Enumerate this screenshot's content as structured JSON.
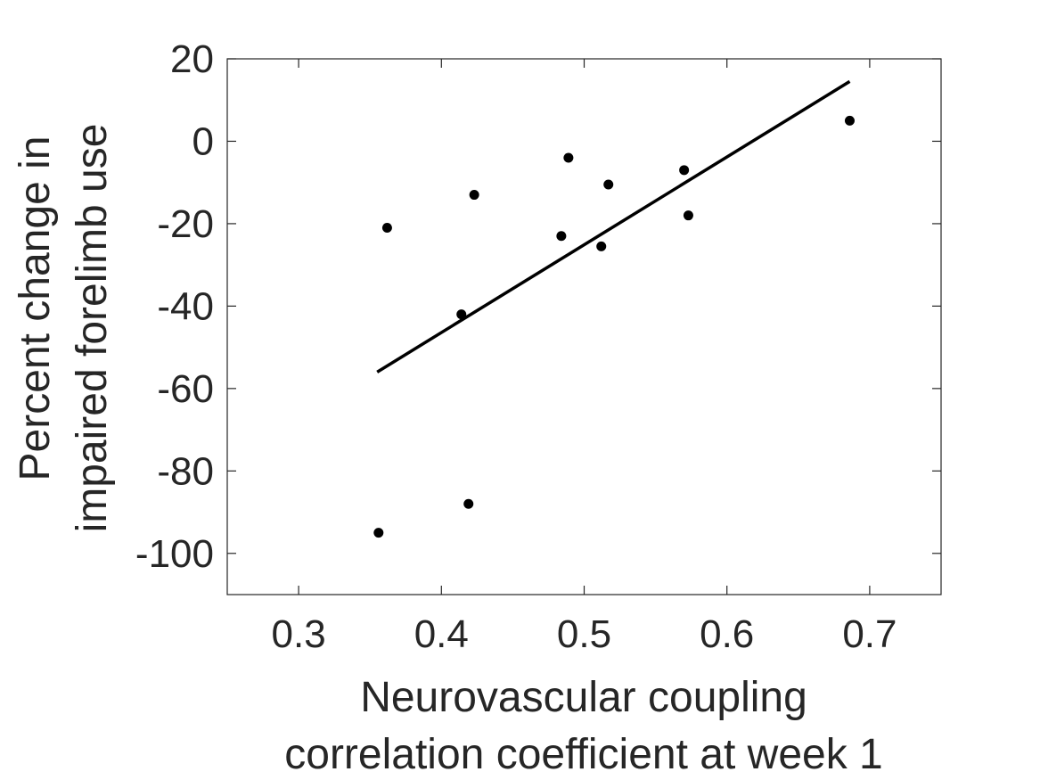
{
  "chart_data": {
    "type": "scatter",
    "xlabel": [
      "Neurovascular coupling",
      "correlation coefficient at week 1"
    ],
    "ylabel": [
      "Percent change in",
      "impaired forelimb use"
    ],
    "xlim": [
      0.25,
      0.75
    ],
    "ylim": [
      -110,
      20
    ],
    "xticks": [
      0.3,
      0.4,
      0.5,
      0.6,
      0.7
    ],
    "yticks": [
      -100,
      -80,
      -60,
      -40,
      -20,
      0,
      20
    ],
    "xtick_labels": [
      "0.3",
      "0.4",
      "0.5",
      "0.6",
      "0.7"
    ],
    "ytick_labels": [
      "-100",
      "-80",
      "-60",
      "-40",
      "-20",
      "0",
      "20"
    ],
    "grid": false,
    "series": [
      {
        "points": [
          {
            "x": 0.356,
            "y": -95
          },
          {
            "x": 0.362,
            "y": -21
          },
          {
            "x": 0.414,
            "y": -42
          },
          {
            "x": 0.419,
            "y": -88
          },
          {
            "x": 0.423,
            "y": -13
          },
          {
            "x": 0.484,
            "y": -23
          },
          {
            "x": 0.489,
            "y": -4
          },
          {
            "x": 0.512,
            "y": -25.5
          },
          {
            "x": 0.517,
            "y": -10.5
          },
          {
            "x": 0.57,
            "y": -7
          },
          {
            "x": 0.573,
            "y": -18
          },
          {
            "x": 0.686,
            "y": 5
          }
        ],
        "color": "#000000"
      }
    ],
    "fit_line": {
      "start": {
        "x": 0.355,
        "y": -56
      },
      "end": {
        "x": 0.686,
        "y": 14.5
      },
      "color": "#000000"
    }
  }
}
